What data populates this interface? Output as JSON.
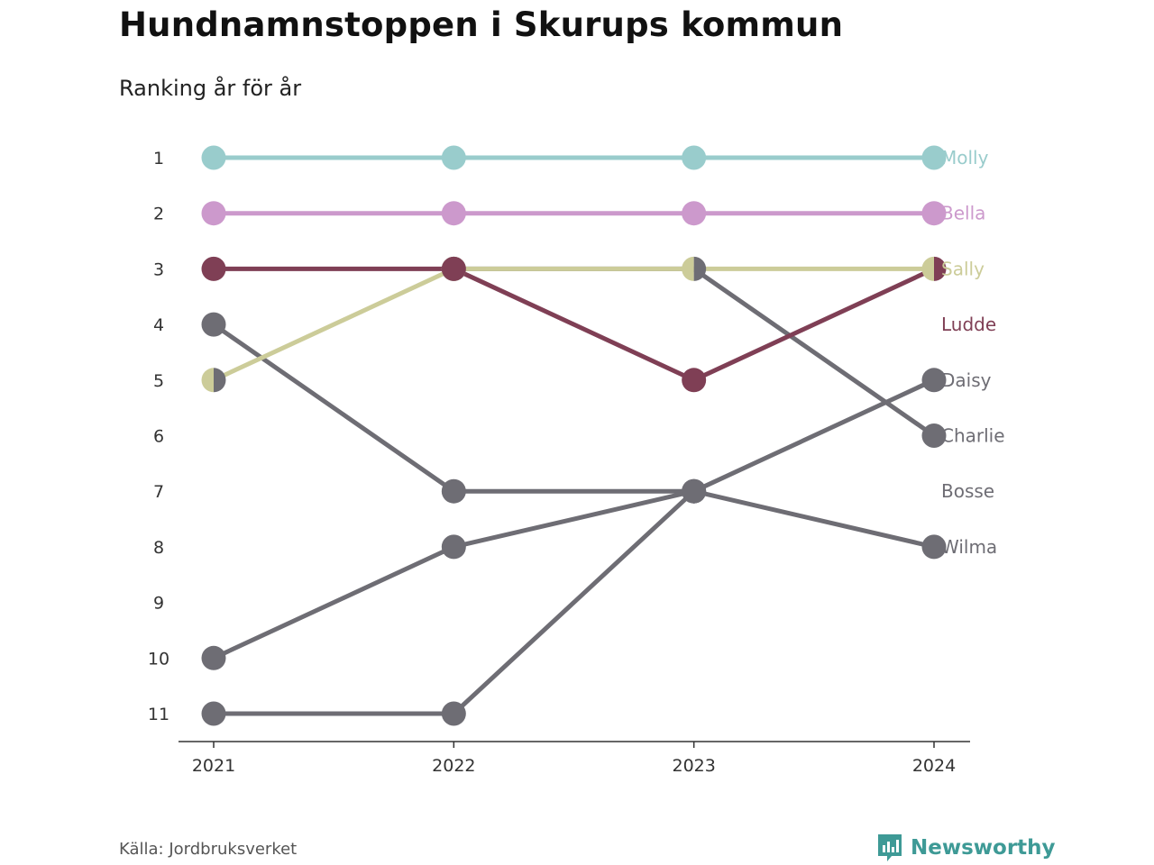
{
  "header": {
    "title": "Hundnamnstoppen i Skurups kommun",
    "subtitle": "Ranking år för år"
  },
  "footer": {
    "source": "Källa: Jordbruksverket",
    "brand": "Newsworthy"
  },
  "colors": {
    "Molly": "#99cccc",
    "Bella": "#cc99cc",
    "Sally": "#cccc99",
    "Ludde": "#7f3f55",
    "gray": "#6e6d74",
    "brand": "#3e9a96"
  },
  "chart_data": {
    "type": "line",
    "x": [
      "2021",
      "2022",
      "2023",
      "2024"
    ],
    "y_ticks": [
      "1",
      "2",
      "3",
      "4",
      "5",
      "6",
      "7",
      "8",
      "9",
      "10",
      "11"
    ],
    "ylim": [
      1,
      11
    ],
    "y_reversed": true,
    "grid": false,
    "series": [
      {
        "name": "Molly",
        "values": [
          1,
          1,
          1,
          1
        ],
        "color": "#99cccc"
      },
      {
        "name": "Bella",
        "values": [
          2,
          2,
          2,
          2
        ],
        "color": "#cc99cc"
      },
      {
        "name": "Sally",
        "values": [
          5,
          3,
          3,
          3
        ],
        "color": "#cccc99"
      },
      {
        "name": "Ludde",
        "values": [
          3,
          3,
          5,
          null
        ],
        "color": "#7f3f55"
      },
      {
        "name": "Daisy",
        "values": [
          11,
          11,
          7,
          5
        ],
        "color": "#6e6d74"
      },
      {
        "name": "Charlie",
        "values": [
          null,
          3,
          3,
          6
        ],
        "color": "#6e6d74"
      },
      {
        "name": "Bosse",
        "values": [
          4,
          7,
          7,
          null
        ],
        "color": "#6e6d74"
      },
      {
        "name": "Wilma",
        "values": [
          10,
          8,
          7,
          8
        ],
        "color": "#6e6d74"
      }
    ],
    "connectors": [
      {
        "series": "Ludde",
        "from_index": 2,
        "to_value": 3
      }
    ],
    "labels": [
      {
        "name": "Molly",
        "rank": 1,
        "color": "#99cccc"
      },
      {
        "name": "Bella",
        "rank": 2,
        "color": "#cc99cc"
      },
      {
        "name": "Sally",
        "rank": 3,
        "color": "#cccc99"
      },
      {
        "name": "Ludde",
        "rank": 4,
        "color": "#7f3f55"
      },
      {
        "name": "Daisy",
        "rank": 5,
        "color": "#6e6d74"
      },
      {
        "name": "Charlie",
        "rank": 6,
        "color": "#6e6d74"
      },
      {
        "name": "Bosse",
        "rank": 7,
        "color": "#6e6d74"
      },
      {
        "name": "Wilma",
        "rank": 8,
        "color": "#6e6d74"
      }
    ],
    "split_markers": [
      {
        "x": "2021",
        "rank": 5,
        "left": "#cccc99",
        "right": "#6e6d74"
      },
      {
        "x": "2023",
        "rank": 3,
        "left": "#cccc99",
        "right": "#6e6d74"
      },
      {
        "x": "2024",
        "rank": 3,
        "left": "#cccc99",
        "right": "#7f3f55"
      }
    ]
  }
}
